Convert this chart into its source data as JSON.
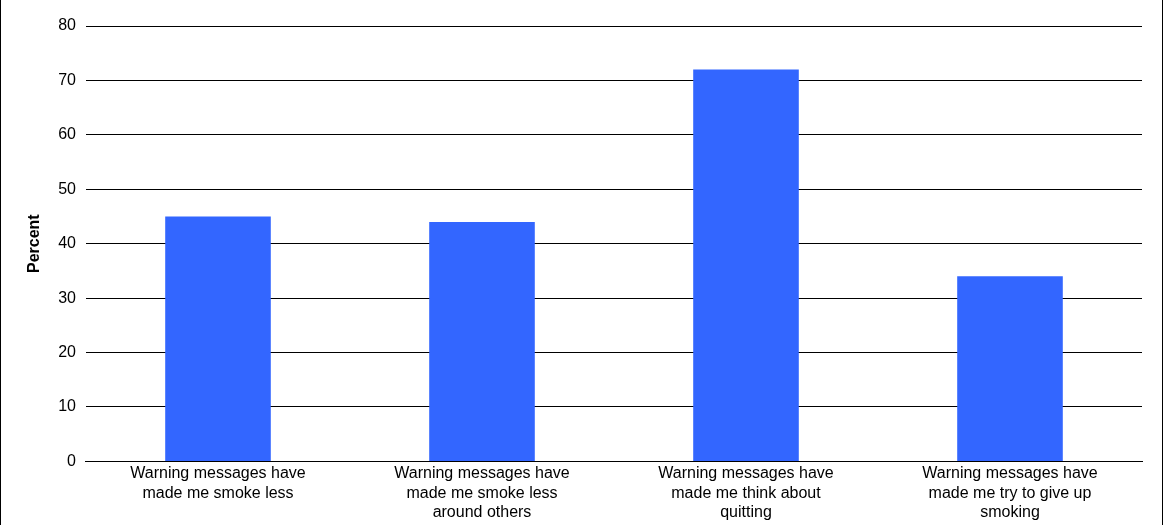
{
  "chart_data": {
    "type": "bar",
    "ylabel": "Percent",
    "categories": [
      "Warning messages have made me smoke less",
      "Warning messages have made me smoke less around others",
      "Warning messages have made me think about quitting",
      "Warning messages have made me try to give up smoking"
    ],
    "values": [
      45,
      44,
      72,
      34
    ],
    "color": "#3366ff",
    "ylim": [
      0,
      80
    ],
    "yticks": [
      0,
      10,
      20,
      30,
      40,
      50,
      60,
      70,
      80
    ],
    "grid": "y",
    "legend": false
  }
}
